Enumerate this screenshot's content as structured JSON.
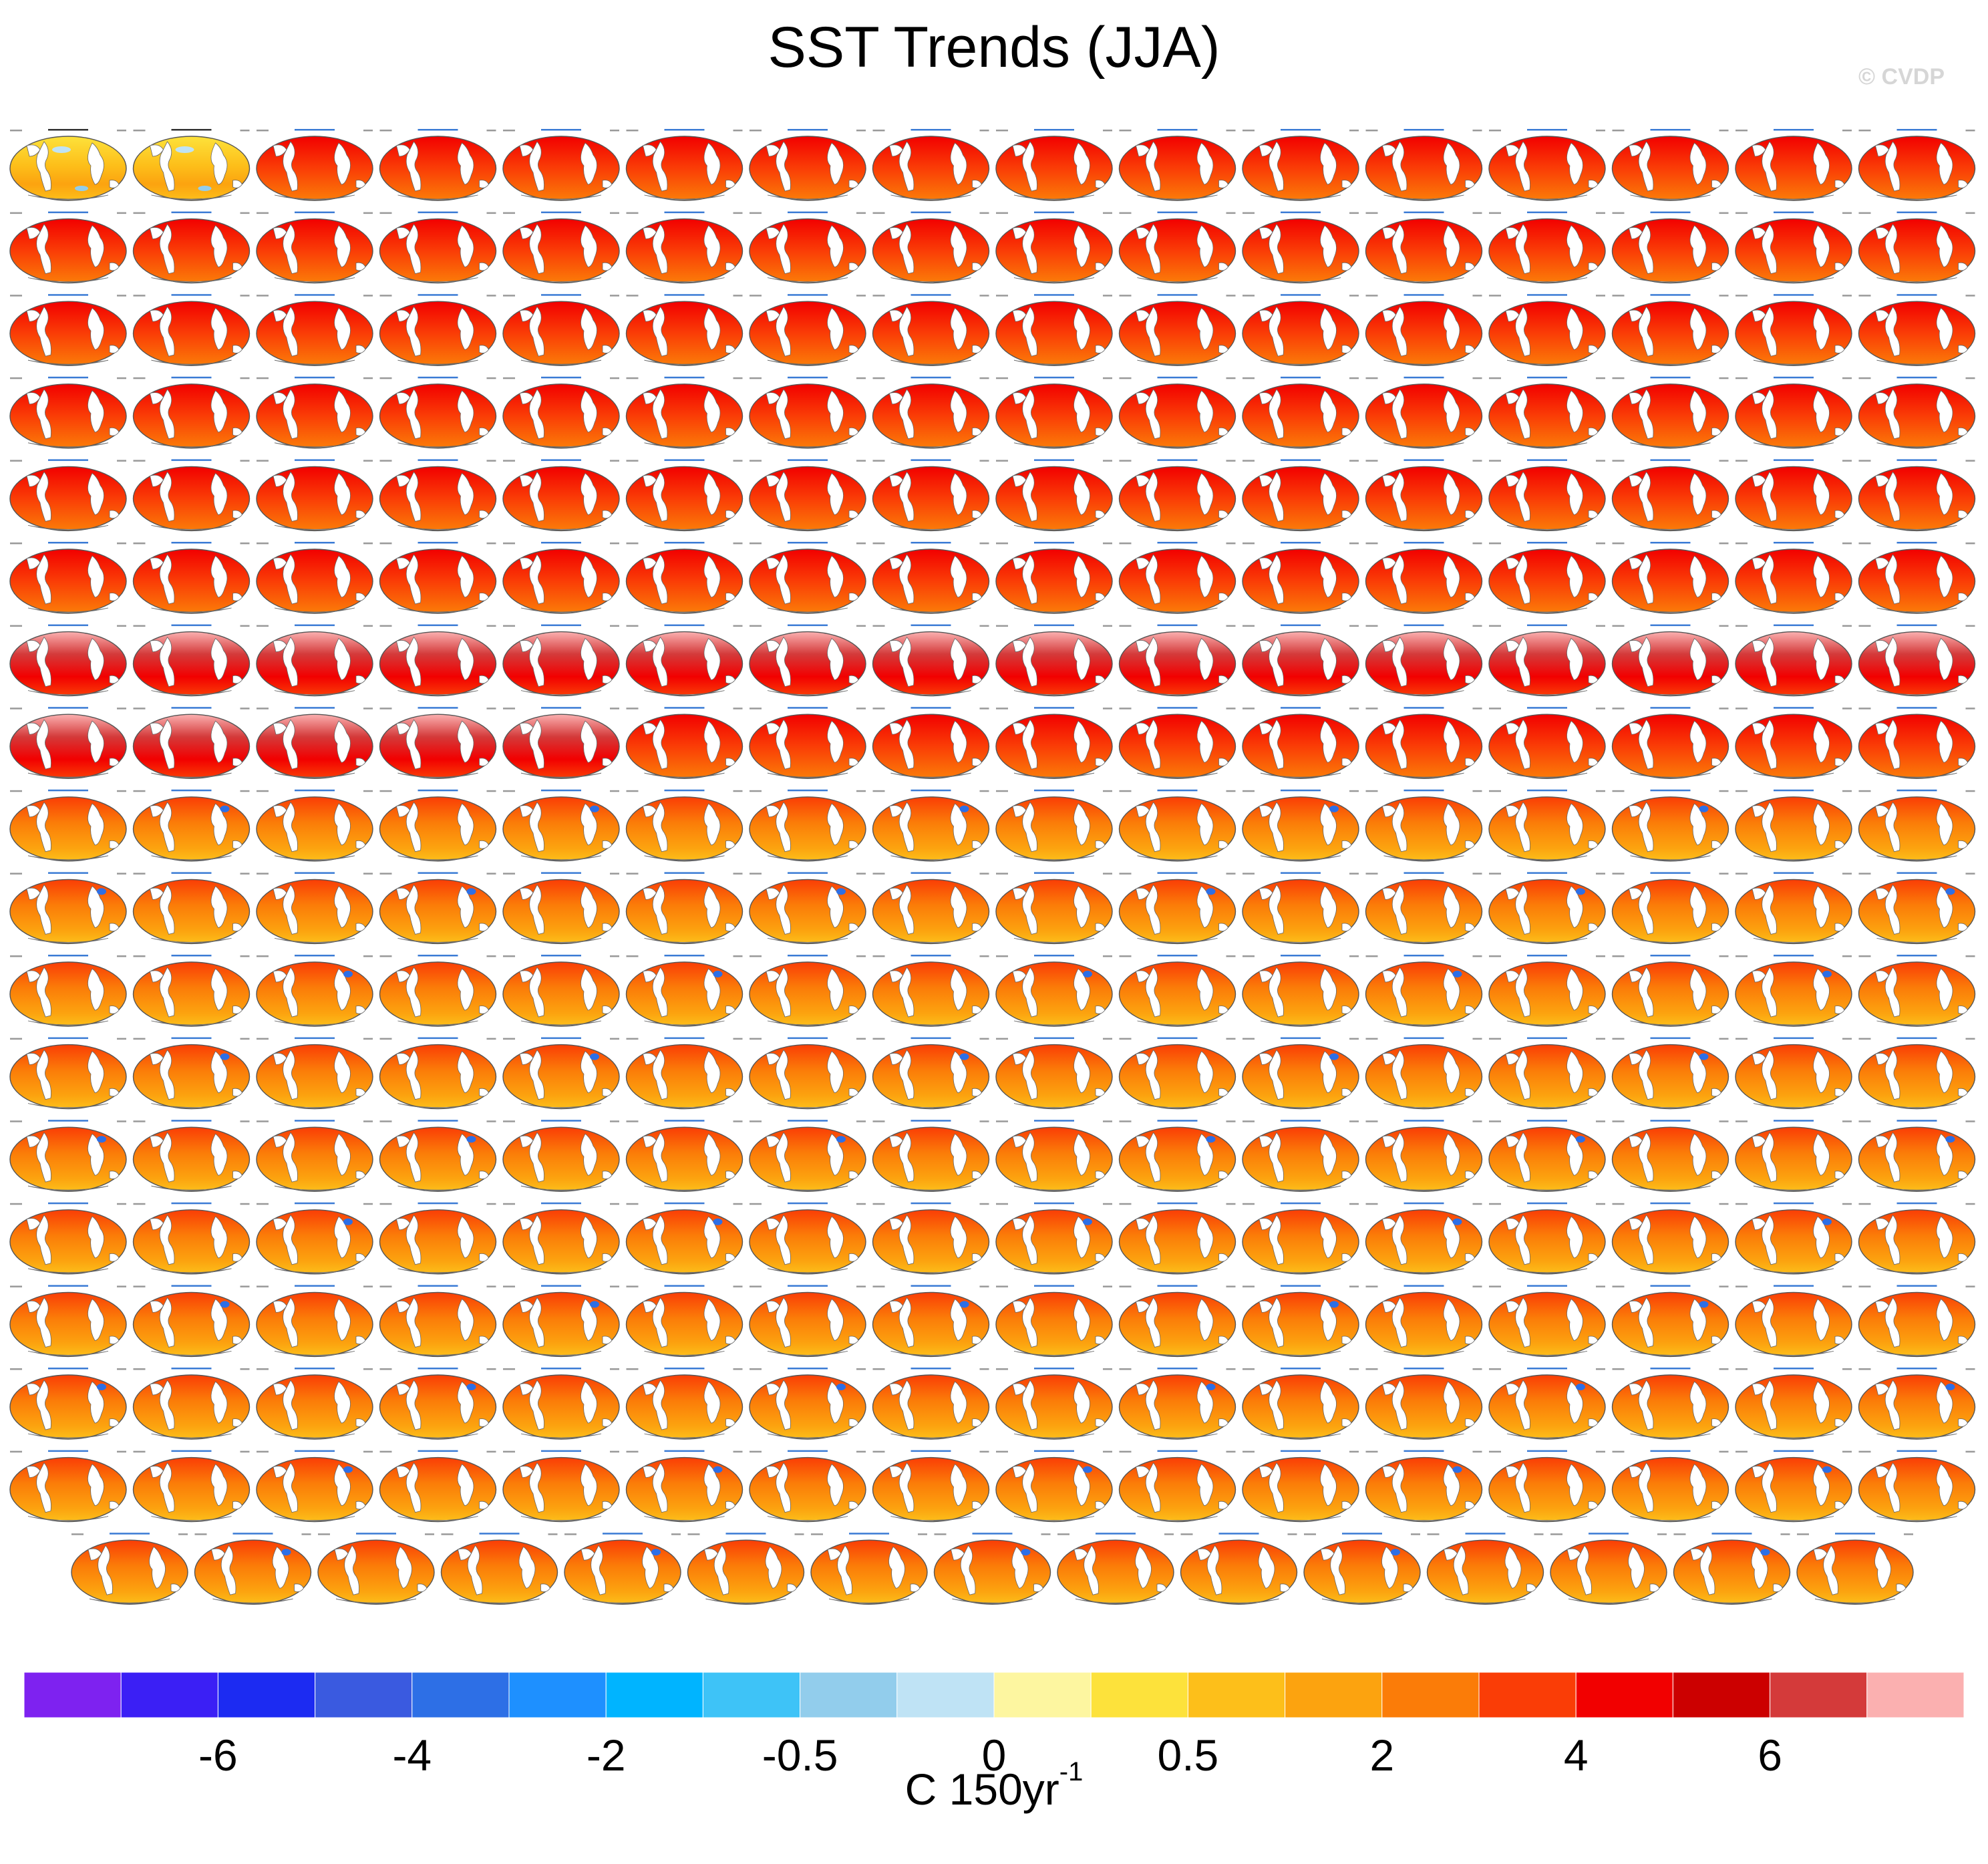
{
  "title": "SST Trends (JJA)",
  "watermark": "© CVDP",
  "chart_data": {
    "type": "heatmap",
    "title": "SST Trends (JJA)",
    "description_panels": "Small-multiples of global SST trend maps; all panels are illegible at this resolution",
    "rows": [
      {
        "panel_count": 16,
        "first_two_are_observations": true,
        "obs_labels": [
          "ERSST v5",
          "HadISST"
        ],
        "model_family": "ACCESS-ESM1-5"
      },
      {
        "panel_count": 16,
        "model_family": "ACCESS-ESM1-5"
      },
      {
        "panel_count": 16,
        "model_family": "ACCESS-ESM1-5 / CanESM5"
      },
      {
        "panel_count": 16,
        "model_family": "CanESM5"
      },
      {
        "panel_count": 16,
        "model_family": "CanESM5"
      },
      {
        "panel_count": 16,
        "model_family": "CanESM5"
      },
      {
        "panel_count": 16,
        "model_family": "CanESM5"
      },
      {
        "panel_count": 16,
        "model_family": "CanESM5 / CESM1"
      },
      {
        "panel_count": 16,
        "model_family": "CESM1"
      },
      {
        "panel_count": 16,
        "model_family": "CESM1 / CESM2"
      },
      {
        "panel_count": 16,
        "model_family": "CESM2"
      },
      {
        "panel_count": 16,
        "model_family": "CESM2"
      },
      {
        "panel_count": 16,
        "model_family": "CESM2"
      },
      {
        "panel_count": 16,
        "model_family": "CESM2"
      },
      {
        "panel_count": 16,
        "model_family": "CESM2"
      },
      {
        "panel_count": 16,
        "model_family": "CESM2"
      },
      {
        "panel_count": 16,
        "model_family": "CESM2"
      },
      {
        "panel_count": 15,
        "model_family": "CESM2"
      }
    ],
    "colorbar": {
      "colors": [
        "#7e22f0",
        "#3b1ff5",
        "#1c2bf2",
        "#3a5ae0",
        "#2d6fe6",
        "#1e90ff",
        "#00b4ff",
        "#3ec3f7",
        "#92cdec",
        "#bfe3f5",
        "#fdf6a0",
        "#fde23b",
        "#fdbf1a",
        "#fca30f",
        "#fb7c08",
        "#fa3d06",
        "#f20000",
        "#cc0000",
        "#d43a3a",
        "#fbb0b0"
      ],
      "tick_labels": [
        "-6",
        "-4",
        "-2",
        "-0.5",
        "0",
        "0.5",
        "2",
        "4",
        "6"
      ],
      "units": "C 150yr",
      "units_exponent": "-1"
    },
    "palette_notes": {
      "dominant": "red-orange (warming 2-6)",
      "observations": "yellow-orange with small blue patches",
      "canesm_late": "pale pink high values in northern hemisphere"
    }
  }
}
